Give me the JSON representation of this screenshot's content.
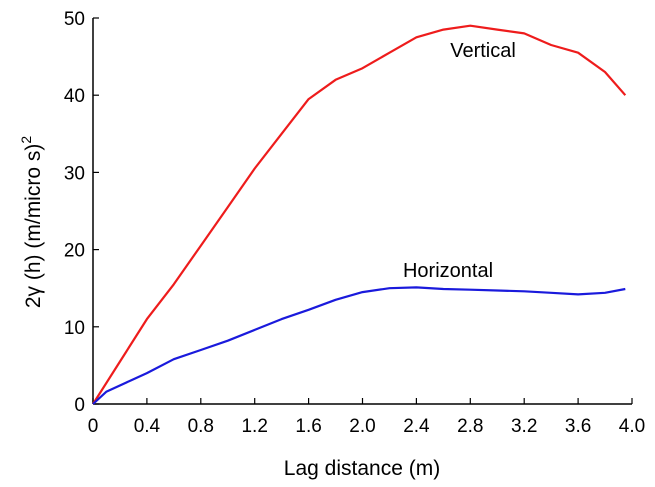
{
  "chart_data": {
    "type": "line",
    "xlabel": "Lag distance (m)",
    "ylabel": "2γ (h) (m/micro s)",
    "ylabel_superscript": "2",
    "xlim": [
      0,
      4.0
    ],
    "ylim": [
      0,
      50
    ],
    "x_ticks": [
      "0",
      "0.4",
      "0.8",
      "1.2",
      "1.6",
      "2.0",
      "2.4",
      "2.8",
      "3.2",
      "3.6",
      "4.0"
    ],
    "y_ticks": [
      "0",
      "10",
      "20",
      "30",
      "40",
      "50"
    ],
    "grid": false,
    "series": [
      {
        "name": "Vertical",
        "color": "#ee1c1c",
        "points": [
          [
            0,
            0
          ],
          [
            0.2,
            5.5
          ],
          [
            0.4,
            11
          ],
          [
            0.6,
            15.5
          ],
          [
            0.8,
            20.5
          ],
          [
            1.0,
            25.5
          ],
          [
            1.2,
            30.5
          ],
          [
            1.4,
            35
          ],
          [
            1.6,
            39.5
          ],
          [
            1.8,
            42
          ],
          [
            2.0,
            43.5
          ],
          [
            2.2,
            45.5
          ],
          [
            2.4,
            47.5
          ],
          [
            2.6,
            48.5
          ],
          [
            2.8,
            49
          ],
          [
            3.0,
            48.5
          ],
          [
            3.2,
            48
          ],
          [
            3.4,
            46.5
          ],
          [
            3.6,
            45.5
          ],
          [
            3.8,
            43
          ],
          [
            3.95,
            40
          ]
        ]
      },
      {
        "name": "Horizontal",
        "color": "#1a1adc",
        "points": [
          [
            0,
            0
          ],
          [
            0.1,
            1.6
          ],
          [
            0.4,
            4
          ],
          [
            0.6,
            5.8
          ],
          [
            0.8,
            7
          ],
          [
            1.0,
            8.2
          ],
          [
            1.2,
            9.6
          ],
          [
            1.4,
            11
          ],
          [
            1.6,
            12.2
          ],
          [
            1.8,
            13.5
          ],
          [
            2.0,
            14.5
          ],
          [
            2.2,
            15
          ],
          [
            2.4,
            15.1
          ],
          [
            2.6,
            14.9
          ],
          [
            2.8,
            14.8
          ],
          [
            3.0,
            14.7
          ],
          [
            3.2,
            14.6
          ],
          [
            3.4,
            14.4
          ],
          [
            3.6,
            14.2
          ],
          [
            3.8,
            14.4
          ],
          [
            3.95,
            14.9
          ]
        ]
      }
    ]
  }
}
